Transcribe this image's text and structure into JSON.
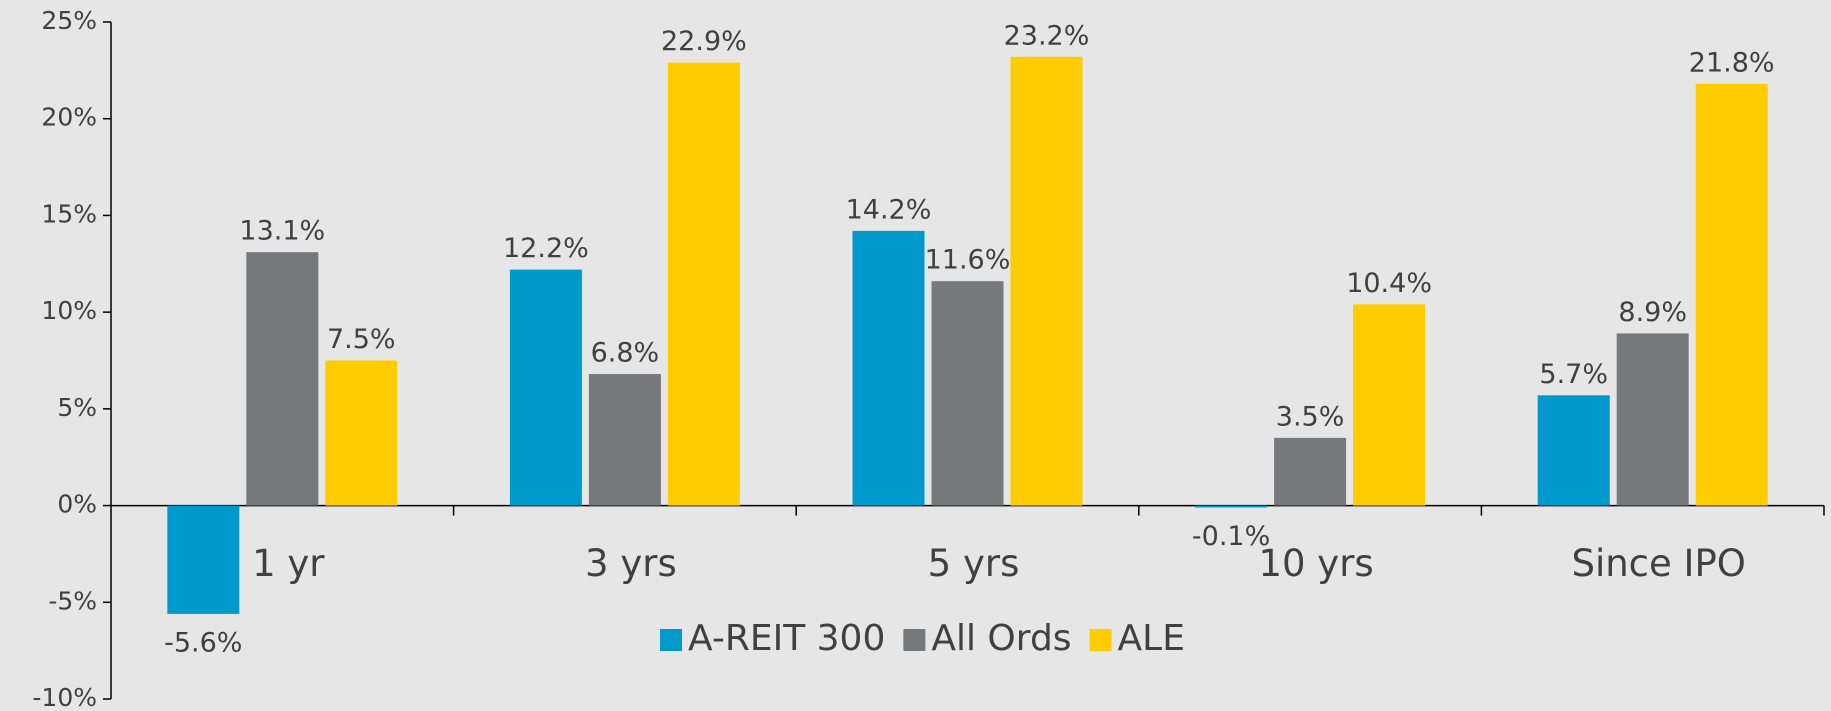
{
  "chart_data": {
    "type": "bar",
    "categories": [
      "1 yr",
      "3 yrs",
      "5 yrs",
      "10 yrs",
      "Since IPO"
    ],
    "series": [
      {
        "name": "A-REIT 300",
        "color": "#0099cc",
        "values": [
          -5.6,
          12.2,
          14.2,
          -0.1,
          5.7
        ],
        "value_labels": [
          "-5.6%",
          "12.2%",
          "14.2%",
          "-0.1%",
          "5.7%"
        ]
      },
      {
        "name": "All Ords",
        "color": "#77787b",
        "values": [
          13.1,
          6.8,
          11.6,
          3.5,
          8.9
        ],
        "value_labels": [
          "13.1%",
          "6.8%",
          "11.6%",
          "3.5%",
          "8.9%"
        ]
      },
      {
        "name": "ALE",
        "color": "#ffcc00",
        "values": [
          7.5,
          22.9,
          23.2,
          10.4,
          21.8
        ],
        "value_labels": [
          "7.5%",
          "22.9%",
          "23.2%",
          "10.4%",
          "21.8%"
        ]
      }
    ],
    "ylim": [
      -10,
      25
    ],
    "yticks": [
      {
        "value": -10,
        "label": "-10%"
      },
      {
        "value": -5,
        "label": "-5%"
      },
      {
        "value": 0,
        "label": "0%"
      },
      {
        "value": 5,
        "label": "5%"
      },
      {
        "value": 10,
        "label": "10%"
      },
      {
        "value": 15,
        "label": "15%"
      },
      {
        "value": 20,
        "label": "20%"
      },
      {
        "value": 25,
        "label": "25%"
      }
    ],
    "legend": "bottom",
    "grid": false
  }
}
